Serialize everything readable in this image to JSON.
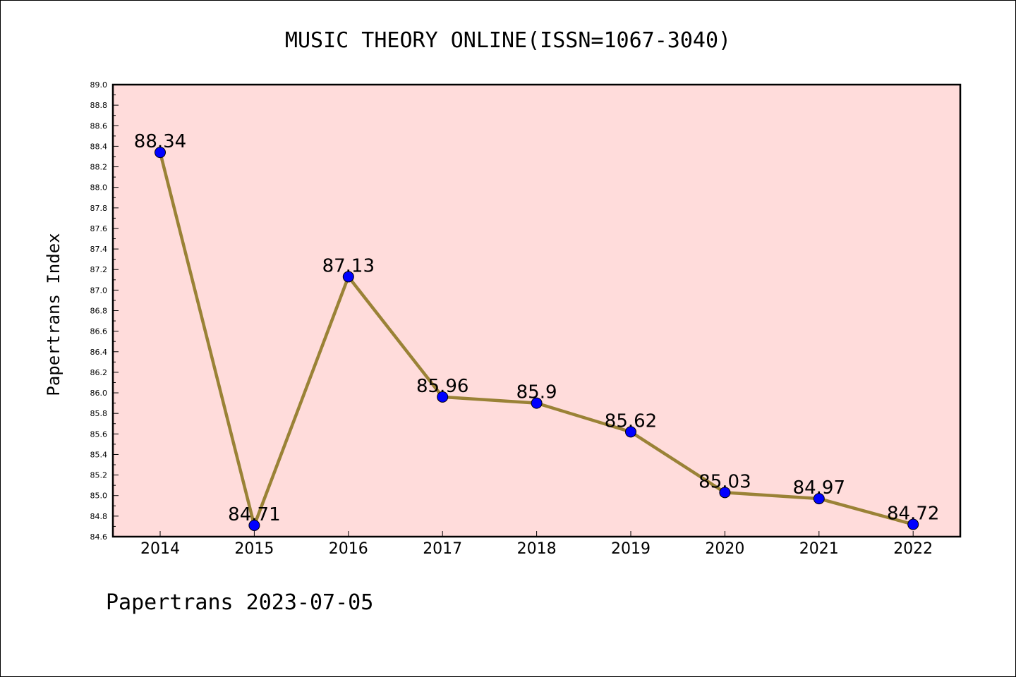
{
  "chart_data": {
    "type": "line",
    "title": "MUSIC THEORY ONLINE(ISSN=1067-3040)",
    "ylabel": "Papertrans Index",
    "xlabel": "",
    "categories": [
      "2014",
      "2015",
      "2016",
      "2017",
      "2018",
      "2019",
      "2020",
      "2021",
      "2022"
    ],
    "series": [
      {
        "values": [
          88.34,
          84.71,
          87.13,
          85.96,
          85.9,
          85.62,
          85.03,
          84.97,
          84.72
        ],
        "labels": [
          "88.34",
          "84.71",
          "87.13",
          "85.96",
          "85.9",
          "85.62",
          "85.03",
          "84.97",
          "84.72"
        ]
      }
    ],
    "ylim": [
      84.6,
      89.0
    ],
    "yticks": [
      "84.6",
      "84.8",
      "85.0",
      "85.2",
      "85.4",
      "85.6",
      "85.8",
      "86.0",
      "86.2",
      "86.4",
      "86.6",
      "86.8",
      "87.0",
      "87.2",
      "87.4",
      "87.6",
      "87.8",
      "88.0",
      "88.2",
      "88.4",
      "88.6",
      "88.8",
      "89.0"
    ],
    "grid": false,
    "colors": {
      "background": "#ffdcdb",
      "line": "#9a8236",
      "marker": "#0000ff"
    }
  },
  "footer": "Papertrans 2023-07-05"
}
